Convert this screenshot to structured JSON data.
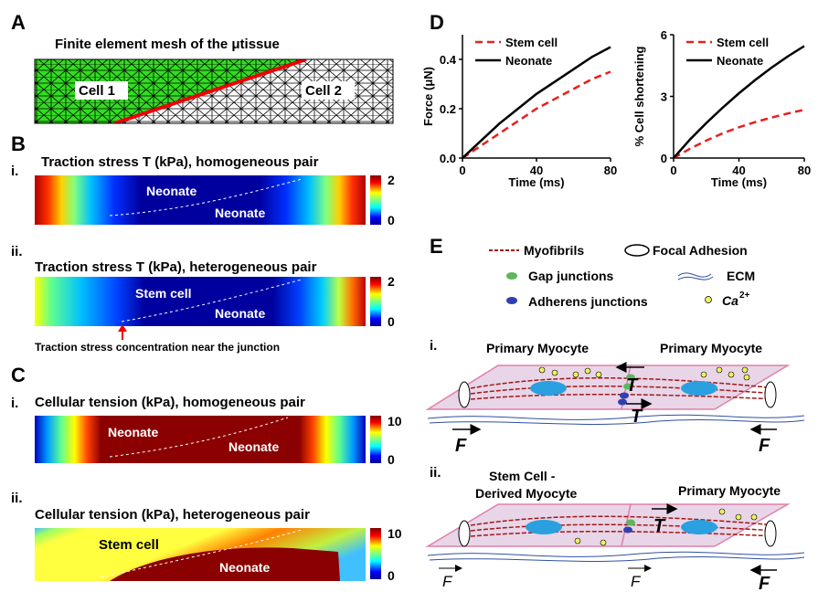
{
  "panels": {
    "A": {
      "letter": "A",
      "title": "Finite element mesh of the μtissue",
      "labels": [
        "Cell 1",
        "Cell 2"
      ]
    },
    "B": {
      "letter": "B",
      "i": {
        "label": "i.",
        "title": "Traction stress T (kPa), homogeneous pair",
        "cells": [
          "Neonate",
          "Neonate"
        ],
        "colorbar": [
          2,
          0
        ]
      },
      "ii": {
        "label": "ii.",
        "title": "Traction stress T (kPa), heterogeneous pair",
        "cells": [
          "Stem cell",
          "Neonate"
        ],
        "colorbar": [
          2,
          0
        ],
        "note": "Traction stress concentration near the junction"
      }
    },
    "C": {
      "letter": "C",
      "i": {
        "label": "i.",
        "title": "Cellular tension (kPa), homogeneous pair",
        "cells": [
          "Neonate",
          "Neonate"
        ],
        "colorbar": [
          10,
          0
        ]
      },
      "ii": {
        "label": "ii.",
        "title": "Cellular tension (kPa), heterogeneous pair",
        "cells": [
          "Stem cell",
          "Neonate"
        ],
        "colorbar": [
          10,
          0
        ]
      }
    },
    "D": {
      "letter": "D"
    },
    "E": {
      "letter": "E",
      "legend": [
        "Myofibrils",
        "Focal Adhesion",
        "Gap junctions",
        "ECM",
        "Adherens junctions",
        "Ca",
        "2+"
      ],
      "i": {
        "label": "i.",
        "cells": [
          "Primary Myocyte",
          "Primary Myocyte"
        ],
        "symbols": [
          "T",
          "T",
          "F",
          "F"
        ]
      },
      "ii": {
        "label": "ii.",
        "cells": [
          "Stem Cell -",
          "Derived Myocyte",
          "Primary Myocyte"
        ],
        "symbols": [
          "T",
          "F",
          "F",
          "F"
        ]
      }
    }
  },
  "chart_data": [
    {
      "type": "line",
      "ylabel": "Force (μN)",
      "xlabel": "Time (ms)",
      "legend": "upper left",
      "x": [
        0,
        10,
        20,
        30,
        40,
        50,
        60,
        70,
        80
      ],
      "xlim": [
        0,
        80
      ],
      "xticks": [
        0,
        40,
        80
      ],
      "ylim": [
        0,
        0.5
      ],
      "yticks": [
        {
          "value": 0,
          "label": "0.0"
        },
        0.2,
        0.4
      ],
      "series": [
        {
          "name": "Stem cell",
          "color": "#e8201c",
          "style": "dashed",
          "values": [
            0,
            0.05,
            0.1,
            0.15,
            0.2,
            0.24,
            0.28,
            0.32,
            0.35
          ]
        },
        {
          "name": "Neonate",
          "color": "#000000",
          "style": "solid",
          "values": [
            0,
            0.07,
            0.14,
            0.2,
            0.26,
            0.31,
            0.36,
            0.41,
            0.45
          ]
        }
      ]
    },
    {
      "type": "line",
      "ylabel": "% Cell shortening",
      "xlabel": "Time (ms)",
      "legend": "upper left",
      "x": [
        0,
        10,
        20,
        30,
        40,
        50,
        60,
        70,
        80
      ],
      "xlim": [
        0,
        80
      ],
      "xticks": [
        0,
        40,
        80
      ],
      "ylim": [
        0,
        6
      ],
      "yticks": [
        0,
        3,
        6
      ],
      "series": [
        {
          "name": "Stem cell",
          "color": "#e8201c",
          "style": "dashed",
          "values": [
            0,
            0.45,
            0.85,
            1.2,
            1.5,
            1.75,
            1.97,
            2.17,
            2.35
          ]
        },
        {
          "name": "Neonate",
          "color": "#000000",
          "style": "solid",
          "values": [
            0,
            0.9,
            1.7,
            2.45,
            3.15,
            3.8,
            4.4,
            4.95,
            5.45
          ]
        }
      ]
    }
  ]
}
